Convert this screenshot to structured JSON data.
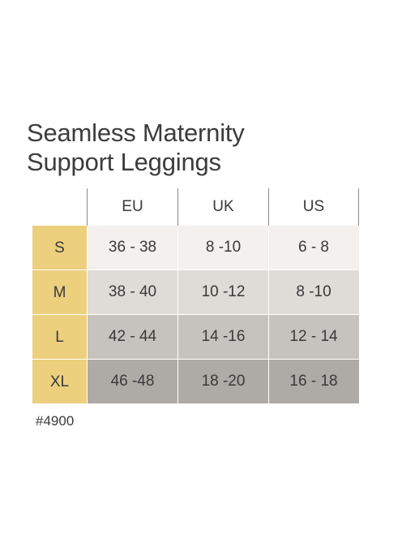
{
  "title": {
    "line1": "Seamless Maternity",
    "line2": "Support Leggings"
  },
  "columns": [
    "EU",
    "UK",
    "US"
  ],
  "rows": [
    {
      "size": "S",
      "eu": "36 - 38",
      "uk": "8 -10",
      "us": "6 - 8"
    },
    {
      "size": "M",
      "eu": "38 - 40",
      "uk": "10 -12",
      "us": "8 -10"
    },
    {
      "size": "L",
      "eu": "42 - 44",
      "uk": "14 -16",
      "us": "12 - 14"
    },
    {
      "size": "XL",
      "eu": "46 -48",
      "uk": "18 -20",
      "us": "16 - 18"
    }
  ],
  "product_code": "#4900",
  "colors": {
    "size_column": "#ecd07e",
    "row_s": "#f3f0ed",
    "row_m": "#dfdbd6",
    "row_l": "#c6c2bd",
    "row_xl": "#aeaaa5"
  }
}
